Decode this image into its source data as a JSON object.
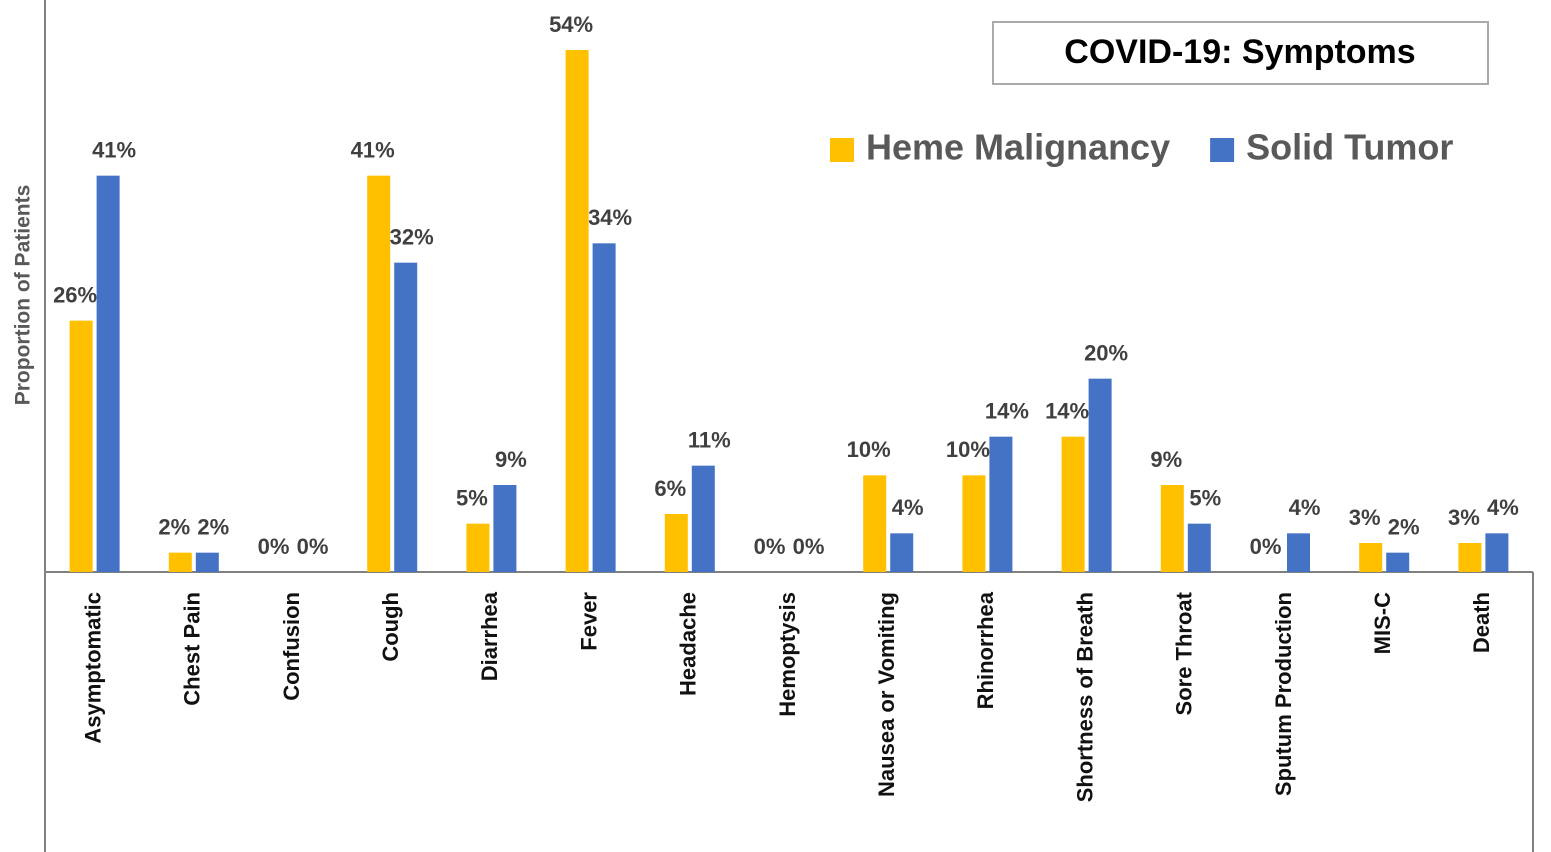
{
  "chart_data": {
    "type": "bar",
    "title": "COVID-19: Symptoms",
    "y_label": "Proportion of Patients",
    "categories": [
      "Asymptomatic",
      "Chest Pain",
      "Confusion",
      "Cough",
      "Diarrhea",
      "Fever",
      "Headache",
      "Hemoptysis",
      "Nausea or Vomiting",
      "Rhinorrhea",
      "Shortness of Breath",
      "Sore Throat",
      "Sputum Production",
      "MIS-C",
      "Death"
    ],
    "series": [
      {
        "name": "Heme Malignancy",
        "color": "#ffc000",
        "values": [
          26,
          2,
          0,
          41,
          5,
          54,
          6,
          0,
          10,
          10,
          14,
          9,
          0,
          3,
          3
        ],
        "value_labels": [
          "26%",
          "2%",
          "0%",
          "41%",
          "5%",
          "54%",
          "6%",
          "0%",
          "10%",
          "10%",
          "14%",
          "9%",
          "0%",
          "3%",
          "3%"
        ]
      },
      {
        "name": "Solid Tumor",
        "color": "#4472c4",
        "values": [
          41,
          2,
          0,
          32,
          9,
          34,
          11,
          0,
          4,
          14,
          20,
          5,
          4,
          2,
          4
        ],
        "value_labels": [
          "41%",
          "2%",
          "0%",
          "32%",
          "9%",
          "34%",
          "11%",
          "0%",
          "4%",
          "14%",
          "20%",
          "5%",
          "4%",
          "2%",
          "4%"
        ]
      }
    ],
    "legend": "top-right"
  }
}
